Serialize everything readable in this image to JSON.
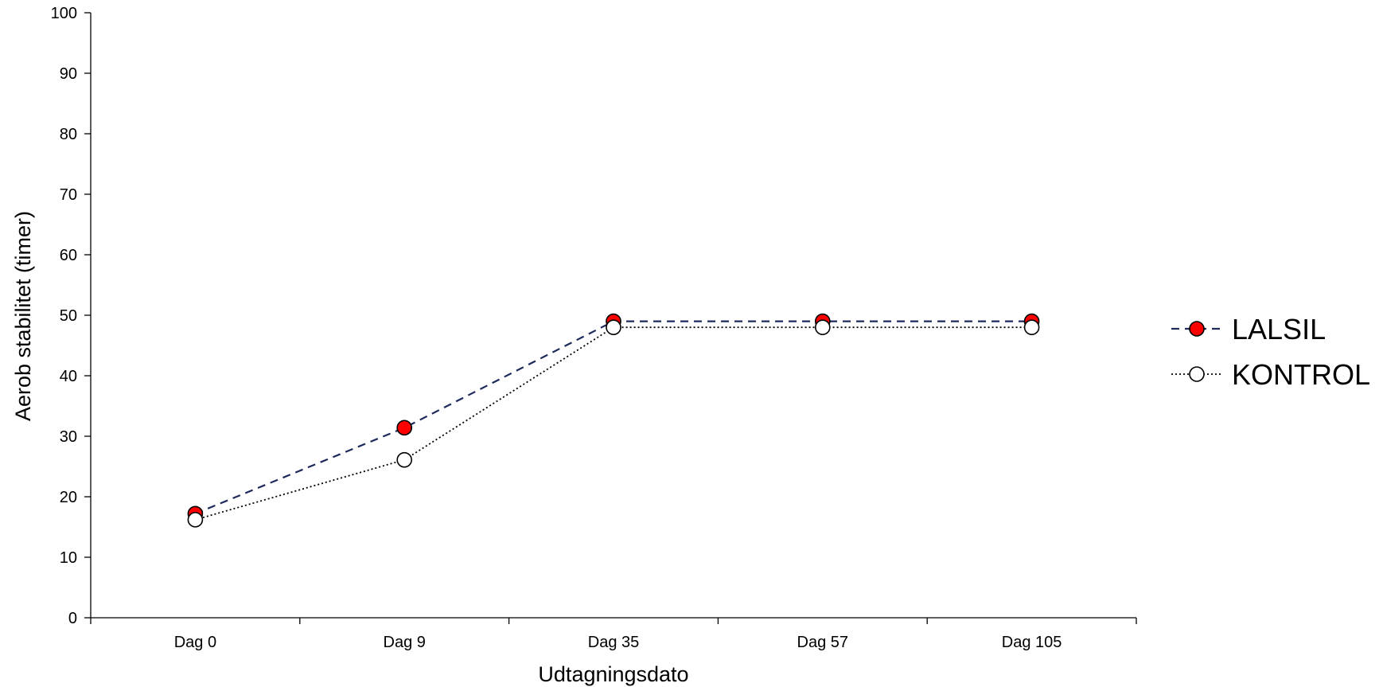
{
  "chart_data": {
    "type": "line",
    "title": "",
    "xlabel": "Udtagningsdato",
    "ylabel": "Aerob stabilitet (timer)",
    "categories": [
      "Dag 0",
      "Dag 9",
      "Dag 35",
      "Dag 57",
      "Dag 105"
    ],
    "ylim": [
      0,
      100
    ],
    "yticks": [
      "0",
      "10",
      "20",
      "30",
      "40",
      "50",
      "60",
      "70",
      "80",
      "90",
      "100"
    ],
    "grid": false,
    "legend_position": "right",
    "series": [
      {
        "name": "LALSIL",
        "values": [
          17.2,
          31.4,
          49.0,
          49.0,
          49.0
        ],
        "line_style": "dashed",
        "line_color": "#1f2a5c",
        "marker_fill": "#ff0000"
      },
      {
        "name": "KONTROL",
        "values": [
          16.2,
          26.1,
          48.0,
          48.0,
          48.0
        ],
        "line_style": "dotted",
        "line_color": "#000000",
        "marker_fill": "#ffffff"
      }
    ]
  }
}
